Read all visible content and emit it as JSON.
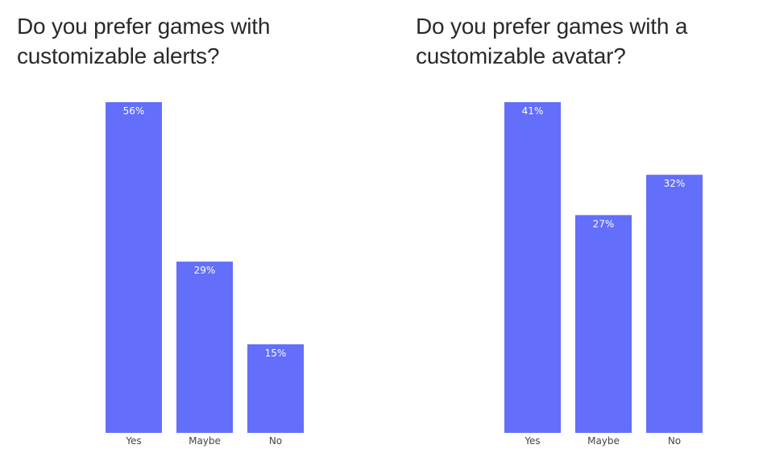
{
  "chart_data": [
    {
      "type": "bar",
      "title": "Do you prefer games with customizable alerts?",
      "categories": [
        "Yes",
        "Maybe",
        "No"
      ],
      "values": [
        56,
        29,
        15
      ],
      "value_labels": [
        "56%",
        "29%",
        "15%"
      ],
      "xlabel": "",
      "ylabel": "",
      "ylim": [
        0,
        56
      ],
      "grid": false,
      "legend": "none"
    },
    {
      "type": "bar",
      "title": "Do you prefer games with a customizable avatar?",
      "categories": [
        "Yes",
        "Maybe",
        "No"
      ],
      "values": [
        41,
        27,
        32
      ],
      "value_labels": [
        "41%",
        "27%",
        "32%"
      ],
      "xlabel": "",
      "ylabel": "",
      "ylim": [
        0,
        41
      ],
      "grid": false,
      "legend": "none"
    }
  ],
  "colors": {
    "bar": "#636efa",
    "bar_label": "#ffffff",
    "tick_label": "#444444",
    "title": "#2a2a2a"
  }
}
